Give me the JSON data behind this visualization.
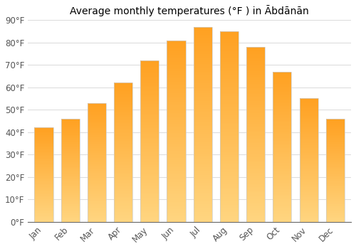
{
  "title": "Average monthly temperatures (°F ) in Ābdānān",
  "months": [
    "Jan",
    "Feb",
    "Mar",
    "Apr",
    "May",
    "Jun",
    "Jul",
    "Aug",
    "Sep",
    "Oct",
    "Nov",
    "Dec"
  ],
  "values": [
    42,
    46,
    53,
    62,
    72,
    81,
    87,
    85,
    78,
    67,
    55,
    46
  ],
  "ylim": [
    0,
    90
  ],
  "yticks": [
    0,
    10,
    20,
    30,
    40,
    50,
    60,
    70,
    80,
    90
  ],
  "ytick_labels": [
    "0°F",
    "10°F",
    "20°F",
    "30°F",
    "40°F",
    "50°F",
    "60°F",
    "70°F",
    "80°F",
    "90°F"
  ],
  "bar_color_bottom": "#FFD580",
  "bar_color_top": "#FFA020",
  "bar_edge_color": "#CCCCCC",
  "background_color": "#FFFFFF",
  "grid_color": "#DDDDDD",
  "title_fontsize": 10,
  "tick_fontsize": 8.5
}
